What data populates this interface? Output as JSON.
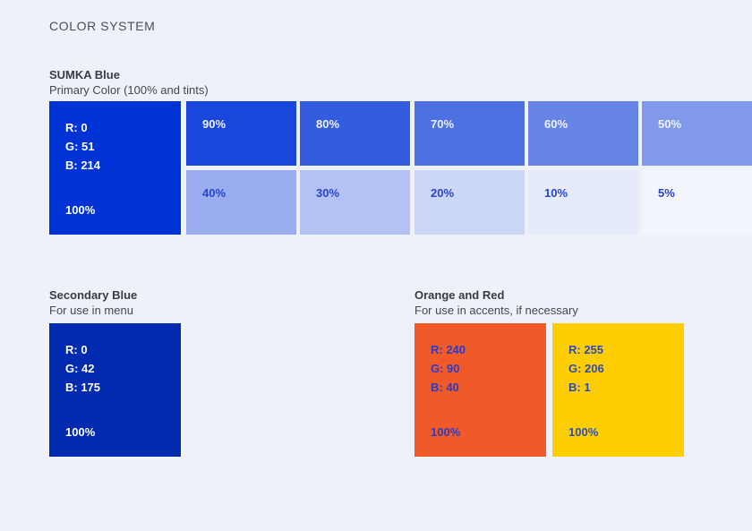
{
  "page": {
    "title": "COLOR SYSTEM",
    "background": "#EFF1F8"
  },
  "text_colors": {
    "title": "#4A4E57",
    "heading": "#383C44",
    "subheading": "#43474F"
  },
  "sections": {
    "primary": {
      "heading": "SUMKA Blue",
      "subheading": "Primary Color (100% and tints)",
      "main_swatch": {
        "hex": "#0033D6",
        "r": "R: 0",
        "g": "G: 51",
        "b": "B: 214",
        "percent": "100%",
        "text_color": "#FFFFFF"
      },
      "tints": [
        {
          "label": "90%",
          "hex": "#1A47DB",
          "label_color": "#EFF3FC"
        },
        {
          "label": "80%",
          "hex": "#335CDE",
          "label_color": "#EFF3FC"
        },
        {
          "label": "70%",
          "hex": "#4D70E2",
          "label_color": "#EFF3FC"
        },
        {
          "label": "60%",
          "hex": "#6685E6",
          "label_color": "#EFF3FC"
        },
        {
          "label": "50%",
          "hex": "#8099EA",
          "label_color": "#EFF3FC"
        },
        {
          "label": "40%",
          "hex": "#99ADEF",
          "label_color": "#2644CE"
        },
        {
          "label": "30%",
          "hex": "#B3C2F3",
          "label_color": "#2644CE"
        },
        {
          "label": "20%",
          "hex": "#CCD6F7",
          "label_color": "#2644CE"
        },
        {
          "label": "10%",
          "hex": "#E6EBFB",
          "label_color": "#2644CE"
        },
        {
          "label": "5%",
          "hex": "#F3F5FD",
          "label_color": "#2644CE"
        }
      ]
    },
    "secondary": {
      "heading": "Secondary Blue",
      "subheading": "For use in menu",
      "swatch": {
        "hex": "#002AAF",
        "r": "R: 0",
        "g": "G: 42",
        "b": "B: 175",
        "percent": "100%",
        "text_color": "#FFFFFF"
      }
    },
    "accent": {
      "heading": "Orange and Red",
      "subheading": "For use in accents, if necessary",
      "swatches": [
        {
          "hex": "#F05A28",
          "r": "R: 240",
          "g": "G: 90",
          "b": "B: 40",
          "percent": "100%",
          "text_color": "#2B3BC7"
        },
        {
          "hex": "#FFCE01",
          "r": "R: 255",
          "g": "G: 206",
          "b": "B: 1",
          "percent": "100%",
          "text_color": "#2B4BBB"
        }
      ]
    }
  }
}
